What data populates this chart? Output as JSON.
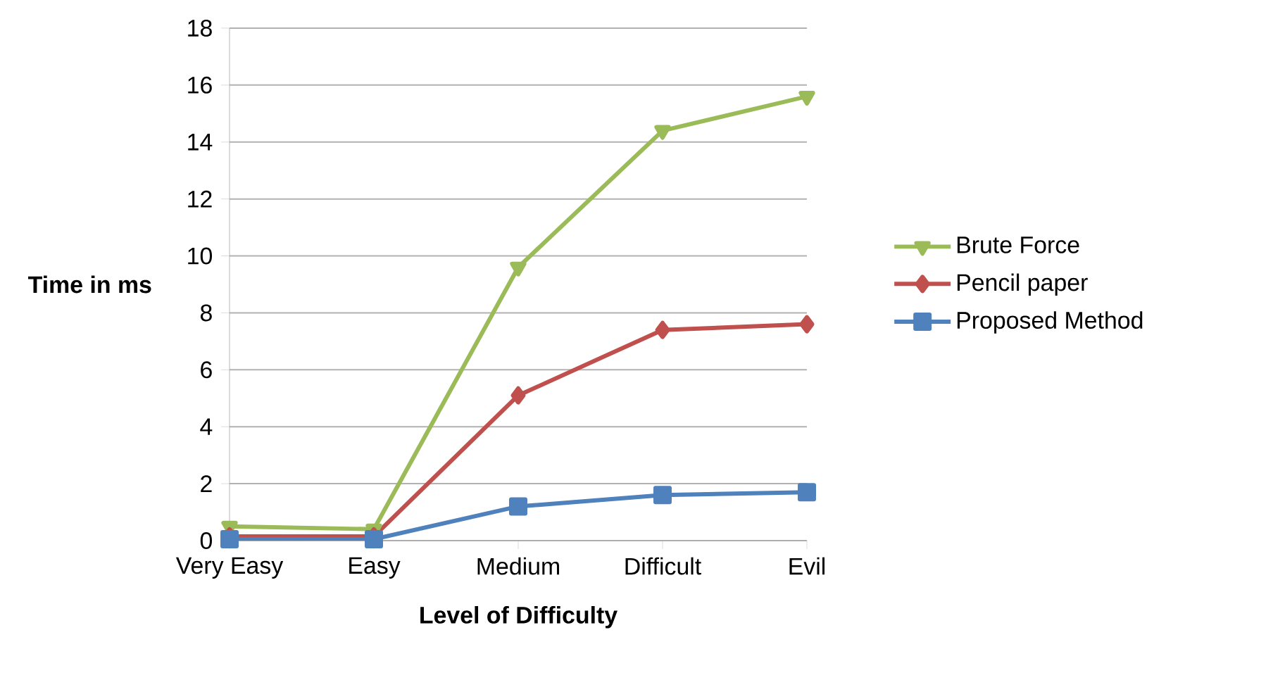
{
  "chart_data": {
    "type": "line",
    "xlabel": "Level of Difficulty",
    "ylabel": "Time in ms",
    "categories": [
      "Very Easy",
      "Easy",
      "Medium",
      "Difficult",
      "Evil"
    ],
    "series": [
      {
        "name": "Brute Force",
        "color": "#9bbb59",
        "marker": "triangle",
        "values": [
          0.5,
          0.4,
          9.6,
          14.4,
          15.6
        ]
      },
      {
        "name": "Pencil paper",
        "color": "#c0504d",
        "marker": "diamond",
        "values": [
          0.15,
          0.15,
          5.1,
          7.4,
          7.6
        ]
      },
      {
        "name": "Proposed Method",
        "color": "#4f81bd",
        "marker": "square",
        "values": [
          0.05,
          0.05,
          1.2,
          1.6,
          1.7
        ]
      }
    ],
    "ylim": [
      0,
      18
    ],
    "yticks": [
      0,
      2,
      4,
      6,
      8,
      10,
      12,
      14,
      16,
      18
    ],
    "grid": "y",
    "legend": "right"
  }
}
